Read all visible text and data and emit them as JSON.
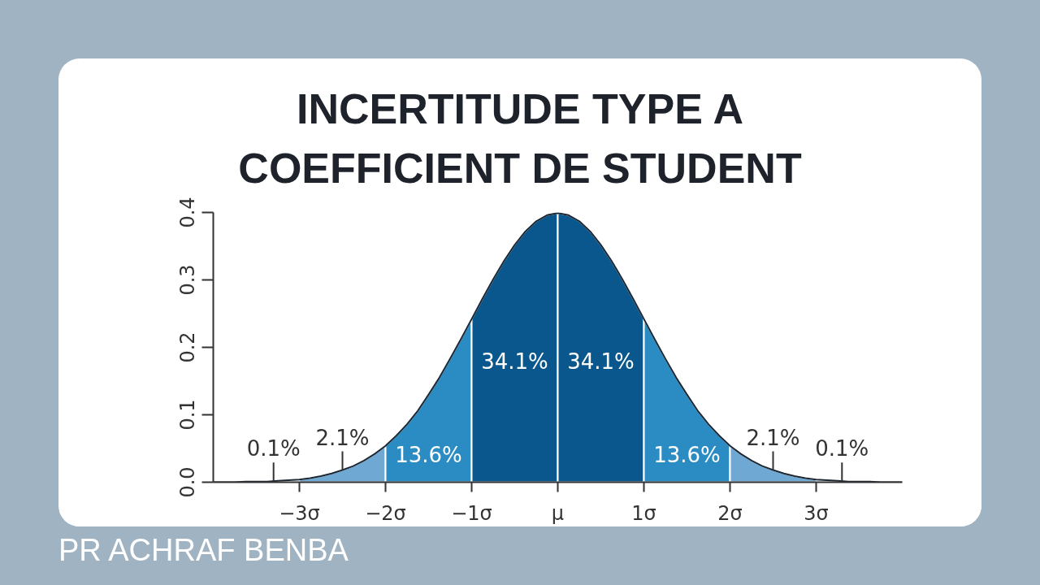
{
  "chart_data": {
    "type": "area",
    "title": "INCERTITUDE TYPE A\nCOEFFICIENT DE STUDENT",
    "xlim": [
      -4,
      4
    ],
    "xticks": [
      {
        "value": -3,
        "label": "−3σ"
      },
      {
        "value": -2,
        "label": "−2σ"
      },
      {
        "value": -1,
        "label": "−1σ"
      },
      {
        "value": 0,
        "label": "μ"
      },
      {
        "value": 1,
        "label": "1σ"
      },
      {
        "value": 2,
        "label": "2σ"
      },
      {
        "value": 3,
        "label": "3σ"
      }
    ],
    "ylim": [
      0,
      0.4
    ],
    "yticks": [
      {
        "value": 0,
        "label": "0.0"
      },
      0.1,
      0.2,
      0.3,
      0.4
    ],
    "series": [
      {
        "color": "#6fa8d3",
        "x": [
          -3,
          -2.875,
          -2.75,
          -2.625,
          -2.5,
          -2.375,
          -2.25,
          -2.125,
          -2
        ],
        "values": [
          0.004,
          0.006,
          0.009,
          0.013,
          0.018,
          0.024,
          0.032,
          0.042,
          0.054
        ]
      },
      {
        "color": "#2b8bc3",
        "x": [
          -2,
          -1.875,
          -1.75,
          -1.625,
          -1.5,
          -1.375,
          -1.25,
          -1.125,
          -1
        ],
        "values": [
          0.054,
          0.069,
          0.086,
          0.106,
          0.13,
          0.155,
          0.183,
          0.212,
          0.242
        ]
      },
      {
        "color": "#0a578d",
        "x": [
          -1,
          -0.875,
          -0.75,
          -0.625,
          -0.5,
          -0.375,
          -0.25,
          -0.125,
          0
        ],
        "values": [
          0.242,
          0.272,
          0.301,
          0.328,
          0.352,
          0.372,
          0.387,
          0.396,
          0.399
        ]
      },
      {
        "color": "#0a578d",
        "x": [
          0,
          0.125,
          0.25,
          0.375,
          0.5,
          0.625,
          0.75,
          0.875,
          1
        ],
        "values": [
          0.399,
          0.396,
          0.387,
          0.372,
          0.352,
          0.328,
          0.301,
          0.272,
          0.242
        ]
      },
      {
        "color": "#2b8bc3",
        "x": [
          1,
          1.125,
          1.25,
          1.375,
          1.5,
          1.625,
          1.75,
          1.875,
          2
        ],
        "values": [
          0.242,
          0.212,
          0.183,
          0.155,
          0.13,
          0.106,
          0.086,
          0.069,
          0.054
        ]
      },
      {
        "color": "#6fa8d3",
        "x": [
          2,
          2.125,
          2.25,
          2.375,
          2.5,
          2.625,
          2.75,
          2.875,
          3
        ],
        "values": [
          0.054,
          0.042,
          0.032,
          0.024,
          0.018,
          0.013,
          0.009,
          0.006,
          0.004
        ]
      },
      {
        "type": "line",
        "color": "#1b2733",
        "x": [
          -4,
          -3.875,
          -3.75,
          -3.625,
          -3.5,
          -3.375,
          -3.25,
          -3.125,
          -3,
          -2.875,
          -2.75,
          -2.625,
          -2.5,
          -2.375,
          -2.25,
          -2.125,
          -2,
          -1.875,
          -1.75,
          -1.625,
          -1.5,
          -1.375,
          -1.25,
          -1.125,
          -1,
          -0.875,
          -0.75,
          -0.625,
          -0.5,
          -0.375,
          -0.25,
          -0.125,
          0,
          0.125,
          0.25,
          0.375,
          0.5,
          0.625,
          0.75,
          0.875,
          1,
          1.125,
          1.25,
          1.375,
          1.5,
          1.625,
          1.75,
          1.875,
          2,
          2.125,
          2.25,
          2.375,
          2.5,
          2.625,
          2.75,
          2.875,
          3,
          3.125,
          3.25,
          3.375,
          3.5,
          3.625,
          3.75,
          3.875,
          4
        ],
        "values": [
          0.0,
          0.0,
          0.0,
          0.001,
          0.001,
          0.001,
          0.002,
          0.003,
          0.004,
          0.006,
          0.009,
          0.013,
          0.018,
          0.024,
          0.032,
          0.042,
          0.054,
          0.069,
          0.086,
          0.106,
          0.13,
          0.155,
          0.183,
          0.212,
          0.242,
          0.272,
          0.301,
          0.328,
          0.352,
          0.372,
          0.387,
          0.396,
          0.399,
          0.396,
          0.387,
          0.372,
          0.352,
          0.328,
          0.301,
          0.272,
          0.242,
          0.212,
          0.183,
          0.155,
          0.13,
          0.106,
          0.086,
          0.069,
          0.054,
          0.042,
          0.032,
          0.024,
          0.018,
          0.013,
          0.009,
          0.006,
          0.004,
          0.003,
          0.002,
          0.001,
          0.001,
          0.001,
          0.0,
          0.0,
          0.0
        ]
      }
    ],
    "annotations": [
      "0.1%",
      "2.1%",
      "13.6%",
      "34.1%",
      "34.1%",
      "13.6%",
      "2.1%",
      "0.1%",
      "PR ACHRAF BENBA"
    ]
  }
}
